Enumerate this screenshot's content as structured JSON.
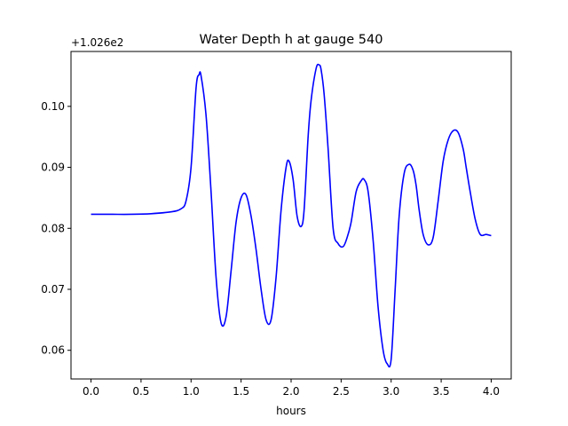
{
  "chart_data": {
    "type": "line",
    "title": "Water Depth h at gauge 540",
    "xlabel": "hours",
    "ylabel": "",
    "offset_label": "+1.026e2",
    "xlim": [
      -0.2,
      4.2
    ],
    "ylim": [
      0.0553,
      0.109
    ],
    "x_ticks": [
      0.0,
      0.5,
      1.0,
      1.5,
      2.0,
      2.5,
      3.0,
      3.5,
      4.0
    ],
    "x_tick_labels": [
      "0.0",
      "0.5",
      "1.0",
      "1.5",
      "2.0",
      "2.5",
      "3.0",
      "3.5",
      "4.0"
    ],
    "y_ticks": [
      0.06,
      0.07,
      0.08,
      0.09,
      0.1
    ],
    "y_tick_labels": [
      "0.06",
      "0.07",
      "0.08",
      "0.09",
      "0.10"
    ],
    "grid": false,
    "legend": "none",
    "series": [
      {
        "color": "#0000ff",
        "x": [
          0.0,
          0.2,
          0.4,
          0.6,
          0.8,
          0.9,
          0.95,
          1.0,
          1.05,
          1.08,
          1.1,
          1.15,
          1.2,
          1.25,
          1.3,
          1.35,
          1.4,
          1.45,
          1.5,
          1.55,
          1.6,
          1.65,
          1.7,
          1.75,
          1.8,
          1.85,
          1.9,
          1.95,
          1.98,
          2.02,
          2.06,
          2.1,
          2.13,
          2.17,
          2.2,
          2.25,
          2.28,
          2.3,
          2.33,
          2.37,
          2.42,
          2.47,
          2.52,
          2.56,
          2.6,
          2.65,
          2.7,
          2.73,
          2.77,
          2.82,
          2.87,
          2.92,
          2.96,
          3.0,
          3.04,
          3.08,
          3.13,
          3.18,
          3.22,
          3.25,
          3.28,
          3.32,
          3.37,
          3.42,
          3.47,
          3.52,
          3.57,
          3.62,
          3.67,
          3.72,
          3.75,
          3.79,
          3.84,
          3.89,
          3.95,
          4.0
        ],
        "y": [
          0.0823,
          0.0823,
          0.0823,
          0.0824,
          0.0827,
          0.0832,
          0.0845,
          0.09,
          0.103,
          0.1052,
          0.105,
          0.0985,
          0.086,
          0.072,
          0.0645,
          0.0655,
          0.073,
          0.081,
          0.085,
          0.0855,
          0.082,
          0.0765,
          0.07,
          0.065,
          0.065,
          0.072,
          0.083,
          0.09,
          0.091,
          0.088,
          0.082,
          0.0803,
          0.083,
          0.095,
          0.101,
          0.1062,
          0.1068,
          0.106,
          0.102,
          0.093,
          0.08,
          0.0775,
          0.077,
          0.0785,
          0.081,
          0.086,
          0.0878,
          0.088,
          0.086,
          0.078,
          0.067,
          0.06,
          0.0578,
          0.0585,
          0.07,
          0.082,
          0.089,
          0.0905,
          0.0895,
          0.087,
          0.083,
          0.079,
          0.0773,
          0.0785,
          0.0845,
          0.091,
          0.0945,
          0.096,
          0.0957,
          0.093,
          0.09,
          0.086,
          0.0815,
          0.079,
          0.079,
          0.0788
        ]
      }
    ]
  }
}
